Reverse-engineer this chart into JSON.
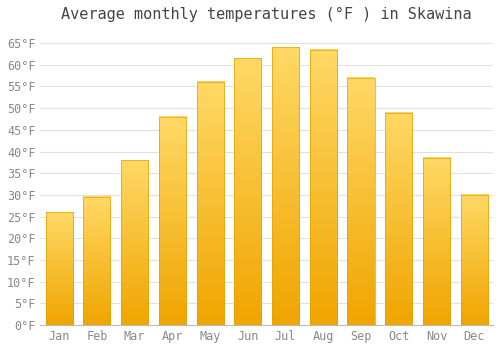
{
  "title": "Average monthly temperatures (°F ) in Skawina",
  "months": [
    "Jan",
    "Feb",
    "Mar",
    "Apr",
    "May",
    "Jun",
    "Jul",
    "Aug",
    "Sep",
    "Oct",
    "Nov",
    "Dec"
  ],
  "values": [
    26,
    29.5,
    38,
    48,
    56,
    61.5,
    64,
    63.5,
    57,
    49,
    38.5,
    30
  ],
  "bar_color_top": "#FFD966",
  "bar_color_bottom": "#F0A500",
  "bar_edge_color": "#E8A000",
  "background_color": "#ffffff",
  "grid_color": "#e0e0e0",
  "ylim": [
    0,
    68
  ],
  "yticks": [
    0,
    5,
    10,
    15,
    20,
    25,
    30,
    35,
    40,
    45,
    50,
    55,
    60,
    65
  ],
  "title_fontsize": 11,
  "tick_fontsize": 8.5,
  "tick_color": "#888888",
  "title_color": "#444444"
}
